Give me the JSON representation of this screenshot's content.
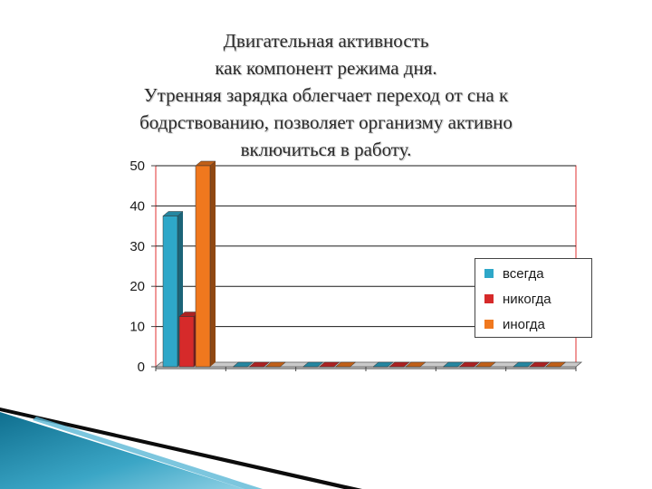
{
  "title_lines": [
    "Двигательная активность",
    "как компонент режима дня.",
    "Утренняя зарядка облегчает переход от сна к",
    "бодрствованию, позволяет организму активно",
    "включиться в работу."
  ],
  "colors": {
    "vsegda": "#2ea7c8",
    "nikogda": "#d62a2a",
    "inogda": "#f0781e",
    "plot_border": "#e03030",
    "gridline": "#1a1a1a"
  },
  "chart_data": {
    "type": "bar",
    "categories": [
      "",
      "",
      "",
      "",
      "",
      ""
    ],
    "series": [
      {
        "name": "всегда",
        "values": [
          37.5,
          0,
          0,
          0,
          0,
          0
        ]
      },
      {
        "name": "никогда",
        "values": [
          12.5,
          0,
          0,
          0,
          0,
          0
        ]
      },
      {
        "name": "иногда",
        "values": [
          50,
          0,
          0,
          0,
          0,
          0
        ]
      }
    ],
    "ylim": [
      0,
      50
    ],
    "yticks": [
      "0",
      "10",
      "20",
      "30",
      "40",
      "50"
    ],
    "grid": true,
    "legend_position": "right",
    "style": "3d-bar"
  }
}
